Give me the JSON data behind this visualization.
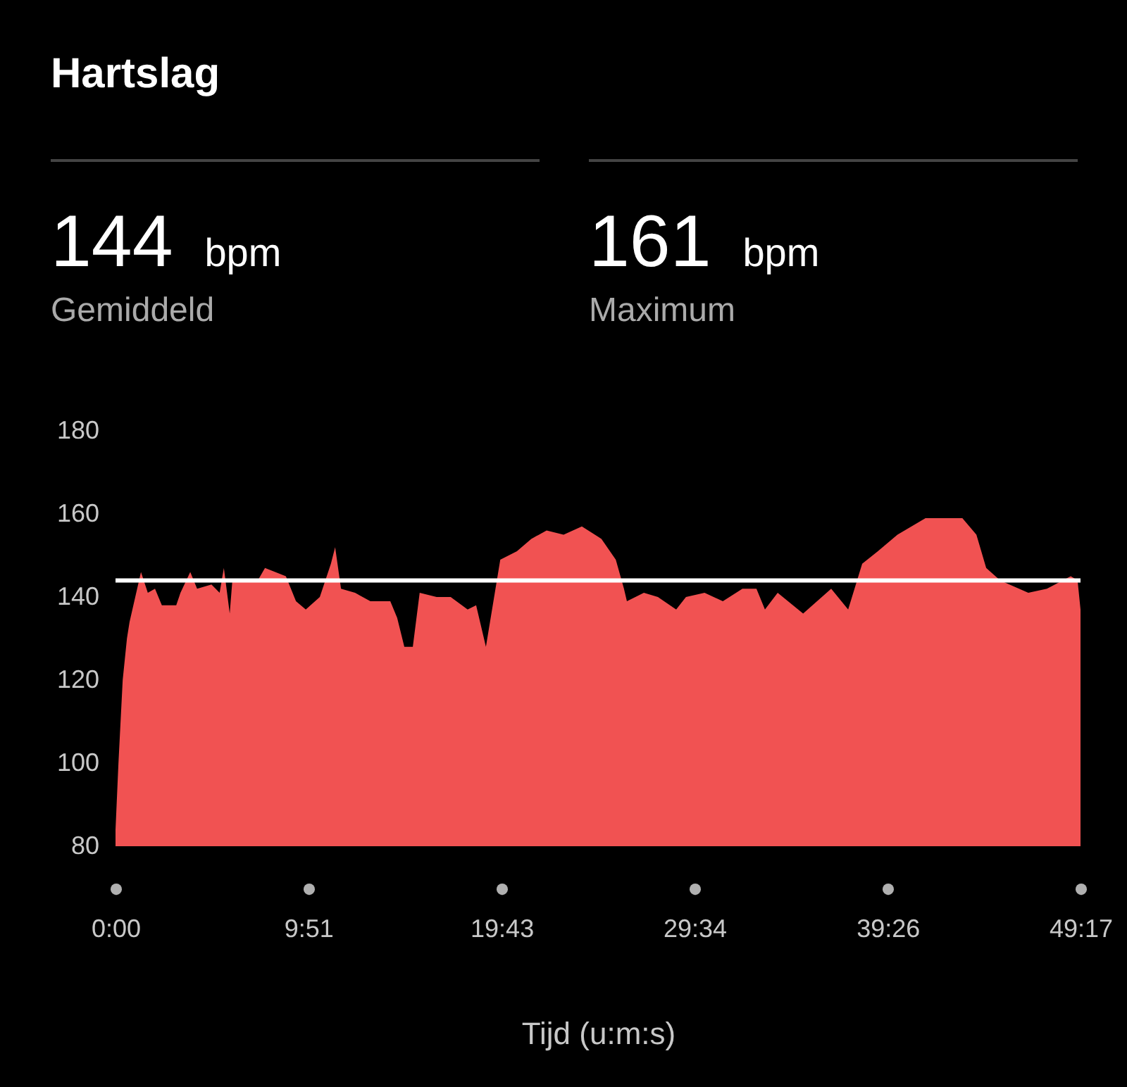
{
  "chart_data": {
    "type": "area",
    "title": "Hartslag",
    "xlabel": "Tijd (u:m:s)",
    "annotations": [
      "144 bpm",
      "Gemiddeld",
      "161 bpm",
      "Maximum"
    ],
    "x": [
      0,
      9,
      22,
      35,
      43,
      78,
      99,
      121,
      142,
      186,
      199,
      229,
      250,
      294,
      319,
      332,
      350,
      358,
      436,
      458,
      522,
      553,
      583,
      626,
      660,
      673,
      691,
      734,
      781,
      842,
      863,
      885,
      911,
      932,
      984,
      1027,
      1079,
      1105,
      1135,
      1179,
      1230,
      1274,
      1321,
      1373,
      1429,
      1489,
      1533,
      1558,
      1567,
      1619,
      1662,
      1718,
      1748,
      1805,
      1861,
      1921,
      1964,
      1990,
      2029,
      2107,
      2193,
      2245,
      2288,
      2336,
      2396,
      2482,
      2595,
      2638,
      2668,
      2711,
      2797,
      2854,
      2927,
      2948,
      2957
    ],
    "series": [
      {
        "color": "#f15252",
        "values": [
          84,
          100,
          120,
          130,
          134,
          146,
          141,
          142,
          138,
          138,
          141,
          146,
          142,
          143,
          141,
          147,
          136,
          144,
          144,
          147,
          145,
          139,
          137,
          140,
          148,
          152,
          142,
          141,
          139,
          139,
          135,
          128,
          128,
          141,
          140,
          140,
          137,
          138,
          128,
          149,
          151,
          154,
          156,
          155,
          157,
          154,
          149,
          142,
          139,
          141,
          140,
          137,
          140,
          141,
          139,
          142,
          142,
          137,
          141,
          136,
          142,
          137,
          148,
          151,
          155,
          159,
          159,
          155,
          147,
          144,
          141,
          142,
          145,
          144,
          137
        ]
      }
    ],
    "xlim": [
      0,
      2957
    ],
    "xticks": [
      {
        "value": 0,
        "label": "0:00"
      },
      {
        "value": 591,
        "label": "9:51"
      },
      {
        "value": 1183,
        "label": "19:43"
      },
      {
        "value": 1774,
        "label": "29:34"
      },
      {
        "value": 2366,
        "label": "39:26"
      },
      {
        "value": 2957,
        "label": "49:17"
      }
    ],
    "ylim": [
      80,
      180
    ],
    "yticks": [
      80,
      100,
      120,
      140,
      160,
      180
    ],
    "ref_lines": [
      {
        "axis": "y",
        "value": 144,
        "color": "#ffffff"
      }
    ],
    "grid": false
  }
}
